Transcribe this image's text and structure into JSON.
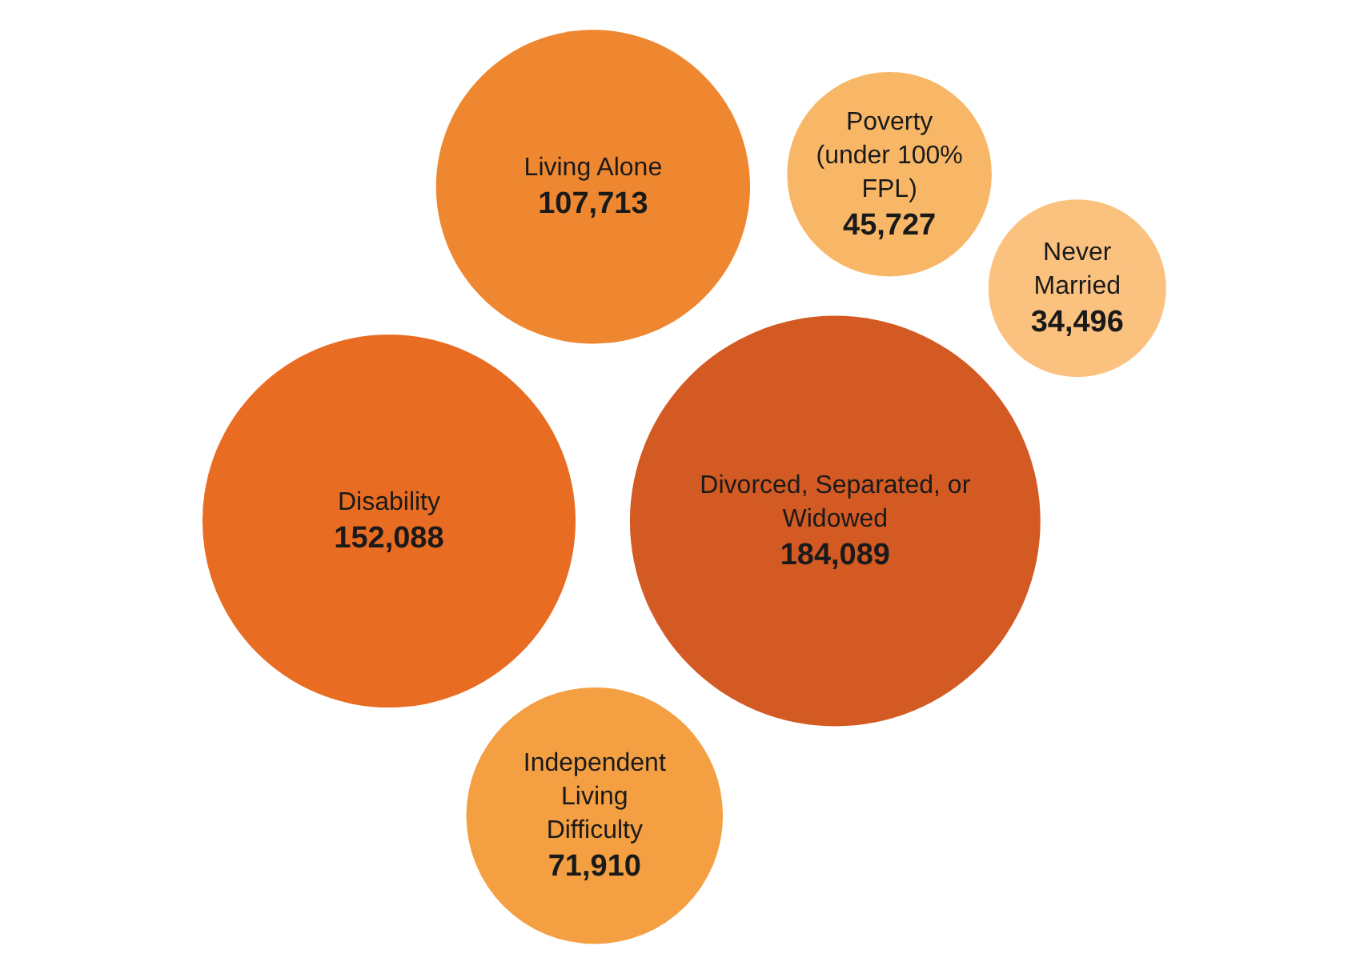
{
  "chart_data": {
    "type": "other",
    "categories": [
      "Poverty (under 100% FPL)",
      "Disability",
      "Divorced, Separated, or Widowed",
      "Never Married",
      "Living Alone",
      "Independent Living Difficulty"
    ],
    "values": [
      45727,
      152088,
      184089,
      34496,
      107713,
      71910
    ],
    "colors": [
      "#f8b767",
      "#e96c23",
      "#d35a23",
      "#fbc27f",
      "#ef8731",
      "#f49f42"
    ],
    "value_labels": [
      "45,727",
      "152,088",
      "184,089",
      "34,496",
      "107,713",
      "71,910"
    ]
  }
}
